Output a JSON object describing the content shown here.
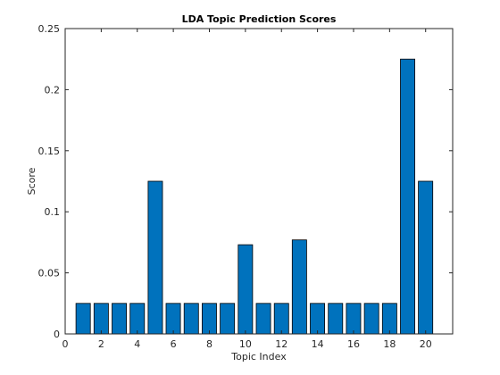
{
  "chart_data": {
    "type": "bar",
    "title": "LDA Topic Prediction Scores",
    "xlabel": "Topic Index",
    "ylabel": "Score",
    "categories": [
      1,
      2,
      3,
      4,
      5,
      6,
      7,
      8,
      9,
      10,
      11,
      12,
      13,
      14,
      15,
      16,
      17,
      18,
      19,
      20
    ],
    "values": [
      0.025,
      0.025,
      0.025,
      0.025,
      0.125,
      0.025,
      0.025,
      0.025,
      0.025,
      0.073,
      0.025,
      0.025,
      0.077,
      0.025,
      0.025,
      0.025,
      0.025,
      0.025,
      0.225,
      0.125
    ],
    "xlim": [
      0,
      21.5
    ],
    "ylim": [
      0,
      0.25
    ],
    "xticks": [
      0,
      2,
      4,
      6,
      8,
      10,
      12,
      14,
      16,
      18,
      20
    ],
    "yticks": [
      0,
      0.05,
      0.1,
      0.15,
      0.2,
      0.25
    ],
    "ytick_labels": [
      "0",
      "0.05",
      "0.1",
      "0.15",
      "0.2",
      "0.25"
    ],
    "grid": false,
    "colors": {
      "bar_fill": "#0072BD",
      "bar_edge": "#000000",
      "axis": "#262626"
    }
  }
}
